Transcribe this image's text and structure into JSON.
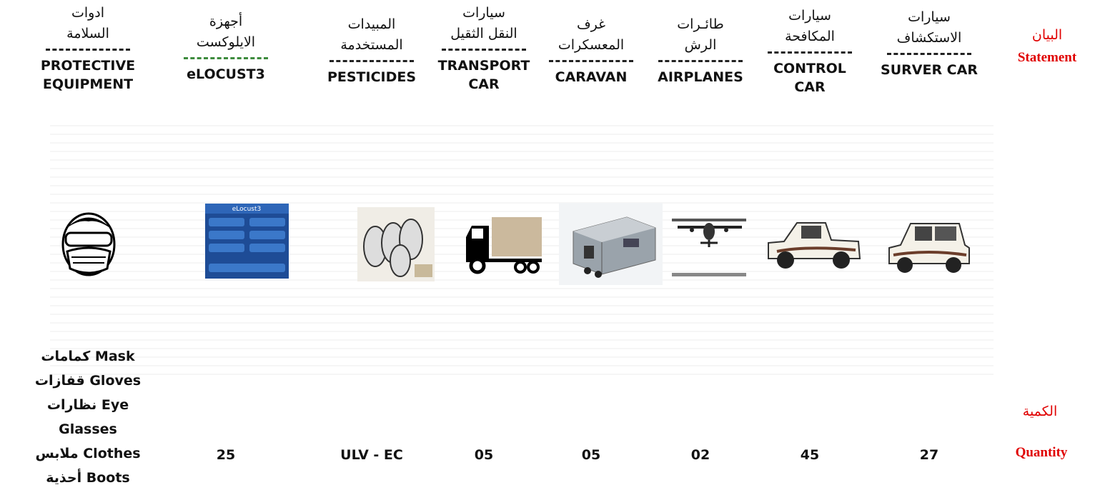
{
  "row_labels": {
    "statement_ar": "البيان",
    "statement_en": "Statement",
    "quantity_ar": "الكمية",
    "quantity_en": "Quantity"
  },
  "columns": [
    {
      "name_ar": [
        "ادوات",
        "السلامة"
      ],
      "name_en": [
        "PROTECTIVE",
        "EQUIPMENT"
      ],
      "quantity": [
        "كمامات Mask",
        "قفازات Gloves",
        "نظارات Eye",
        "Glasses",
        "ملابس Clothes",
        "أحذية Boots"
      ]
    },
    {
      "name_ar": [
        "أجهزة",
        "الايلوكست"
      ],
      "name_en": [
        "eLOCUST3"
      ],
      "quantity": [
        "25"
      ]
    },
    {
      "name_ar": [
        "المبيدات",
        "المستخدمة"
      ],
      "name_en": [
        "PESTICIDES"
      ],
      "quantity": [
        "ULV - EC"
      ]
    },
    {
      "name_ar": [
        "سيارات",
        "النقل الثقيل"
      ],
      "name_en": [
        "TRANSPORT",
        "CAR"
      ],
      "quantity": [
        "05"
      ]
    },
    {
      "name_ar": [
        "غرف",
        "المعسكرات"
      ],
      "name_en": [
        "CARAVAN"
      ],
      "quantity": [
        "05"
      ]
    },
    {
      "name_ar": [
        "طائـرات",
        "الرش"
      ],
      "name_en": [
        "AIRPLANES"
      ],
      "quantity": [
        "02"
      ]
    },
    {
      "name_ar": [
        "سيارات",
        "المكافحة"
      ],
      "name_en": [
        "CONTROL",
        "CAR"
      ],
      "quantity": [
        "45"
      ]
    },
    {
      "name_ar": [
        "سيارات",
        "الاستكشاف"
      ],
      "name_en": [
        "SURVER CAR"
      ],
      "quantity": [
        "27"
      ]
    }
  ]
}
